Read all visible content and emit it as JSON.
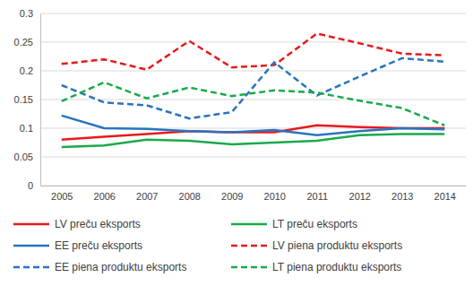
{
  "chart_data": {
    "type": "line",
    "categories": [
      "2005",
      "2006",
      "2007",
      "2008",
      "2009",
      "2010",
      "2011",
      "2012",
      "2013",
      "2014"
    ],
    "series": [
      {
        "name": "LV preču eksports",
        "color": "#e8191b",
        "line_style": "solid",
        "values": [
          0.08,
          0.085,
          0.09,
          0.095,
          0.093,
          0.093,
          0.105,
          0.102,
          0.1,
          0.1
        ]
      },
      {
        "name": "LT preču eksports",
        "color": "#1aaa4a",
        "line_style": "solid",
        "values": [
          0.067,
          0.07,
          0.08,
          0.078,
          0.072,
          0.075,
          0.078,
          0.088,
          0.09,
          0.09
        ]
      },
      {
        "name": "EE preču eksports",
        "color": "#2a73c0",
        "line_style": "solid",
        "values": [
          0.122,
          0.1,
          0.099,
          0.095,
          0.093,
          0.097,
          0.088,
          0.095,
          0.1,
          0.098
        ]
      },
      {
        "name": "LV piena produktu eksports",
        "color": "#e8191b",
        "line_style": "dashed",
        "values": [
          0.212,
          0.22,
          0.202,
          0.252,
          0.206,
          0.21,
          0.265,
          0.248,
          0.23,
          0.227
        ]
      },
      {
        "name": "EE piena produktu eksports",
        "color": "#2a73c0",
        "line_style": "dashed",
        "values": [
          0.175,
          0.145,
          0.14,
          0.117,
          0.128,
          0.215,
          0.157,
          0.19,
          0.222,
          0.216
        ]
      },
      {
        "name": "LT piena produktu eksports",
        "color": "#1aaa4a",
        "line_style": "dashed",
        "values": [
          0.147,
          0.18,
          0.152,
          0.171,
          0.156,
          0.166,
          0.162,
          0.148,
          0.135,
          0.105
        ]
      }
    ],
    "ylim": [
      0,
      0.3
    ],
    "yticks": [
      0,
      0.05,
      0.1,
      0.15,
      0.2,
      0.25,
      0.3
    ],
    "grid": true,
    "legend": "bottom"
  }
}
